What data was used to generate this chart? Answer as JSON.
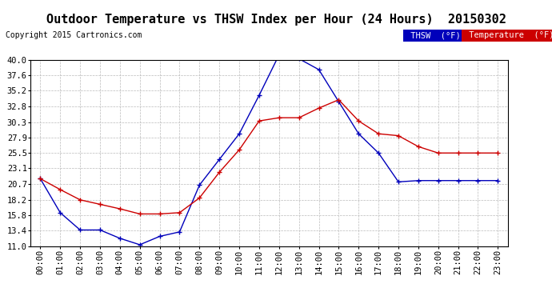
{
  "title": "Outdoor Temperature vs THSW Index per Hour (24 Hours)  20150302",
  "copyright": "Copyright 2015 Cartronics.com",
  "hours": [
    "00:00",
    "01:00",
    "02:00",
    "03:00",
    "04:00",
    "05:00",
    "06:00",
    "07:00",
    "08:00",
    "09:00",
    "10:00",
    "11:00",
    "12:00",
    "13:00",
    "14:00",
    "15:00",
    "16:00",
    "17:00",
    "18:00",
    "19:00",
    "20:00",
    "21:00",
    "22:00",
    "23:00"
  ],
  "thsw": [
    21.5,
    16.2,
    13.5,
    13.5,
    12.2,
    11.2,
    12.5,
    13.2,
    20.5,
    24.5,
    28.5,
    34.5,
    40.8,
    40.2,
    38.5,
    33.5,
    28.5,
    25.5,
    21.0,
    21.2,
    21.2,
    21.2,
    21.2,
    21.2
  ],
  "temperature": [
    21.5,
    19.8,
    18.2,
    17.5,
    16.8,
    16.0,
    16.0,
    16.2,
    18.5,
    22.5,
    26.0,
    30.5,
    31.0,
    31.0,
    32.5,
    33.8,
    30.5,
    28.5,
    28.2,
    26.5,
    25.5,
    25.5,
    25.5,
    25.5
  ],
  "ylim": [
    11.0,
    40.0
  ],
  "yticks": [
    11.0,
    13.4,
    15.8,
    18.2,
    20.7,
    23.1,
    25.5,
    27.9,
    30.3,
    32.8,
    35.2,
    37.6,
    40.0
  ],
  "thsw_color": "#0000bb",
  "temp_color": "#cc0000",
  "bg_color": "#ffffff",
  "grid_color": "#bbbbbb",
  "legend_thsw_bg": "#0000bb",
  "legend_temp_bg": "#cc0000",
  "title_fontsize": 11,
  "copyright_fontsize": 7,
  "tick_fontsize": 7.5
}
